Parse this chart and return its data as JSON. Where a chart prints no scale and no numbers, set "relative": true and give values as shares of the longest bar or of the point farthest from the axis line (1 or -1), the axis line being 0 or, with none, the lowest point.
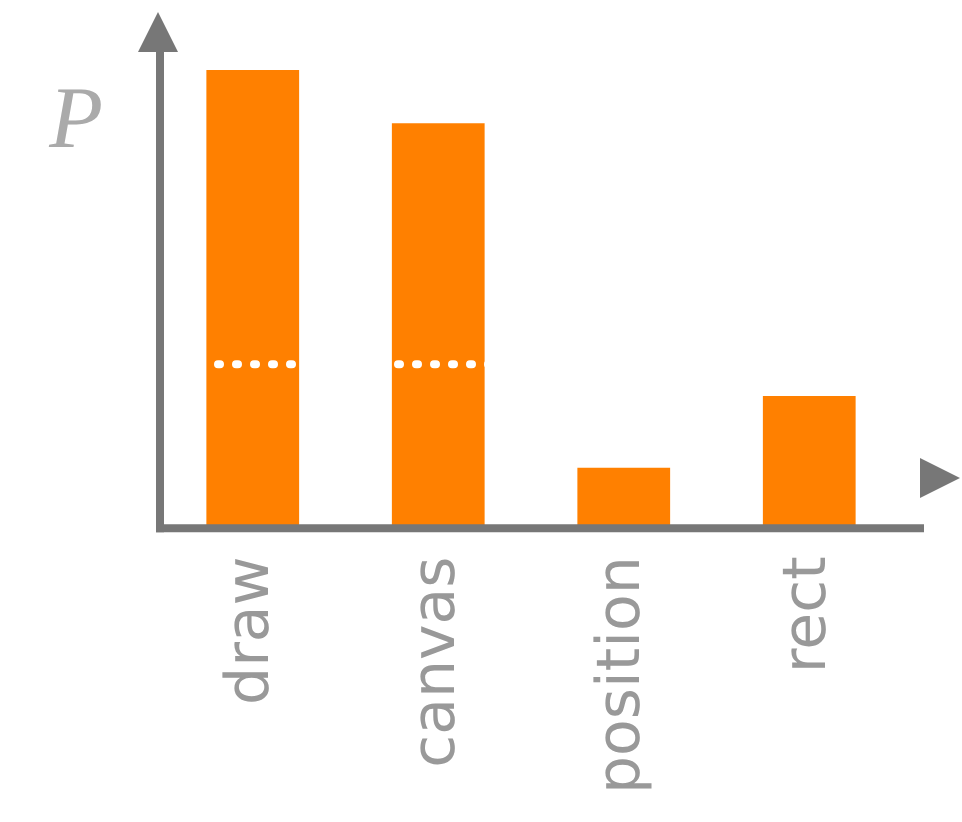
{
  "chart_data": {
    "type": "bar",
    "ylabel": "P",
    "relative": true,
    "categories": [
      "draw",
      "canvas",
      "position",
      "rect"
    ],
    "values": [
      1,
      0.884,
      0.132,
      0.289
    ],
    "color": "#ff8000",
    "grid": false,
    "legend": false,
    "ref_lines": [
      {
        "axis": "y",
        "value": 0.358,
        "color": "#ffffff",
        "line_style": "dotted"
      }
    ]
  }
}
